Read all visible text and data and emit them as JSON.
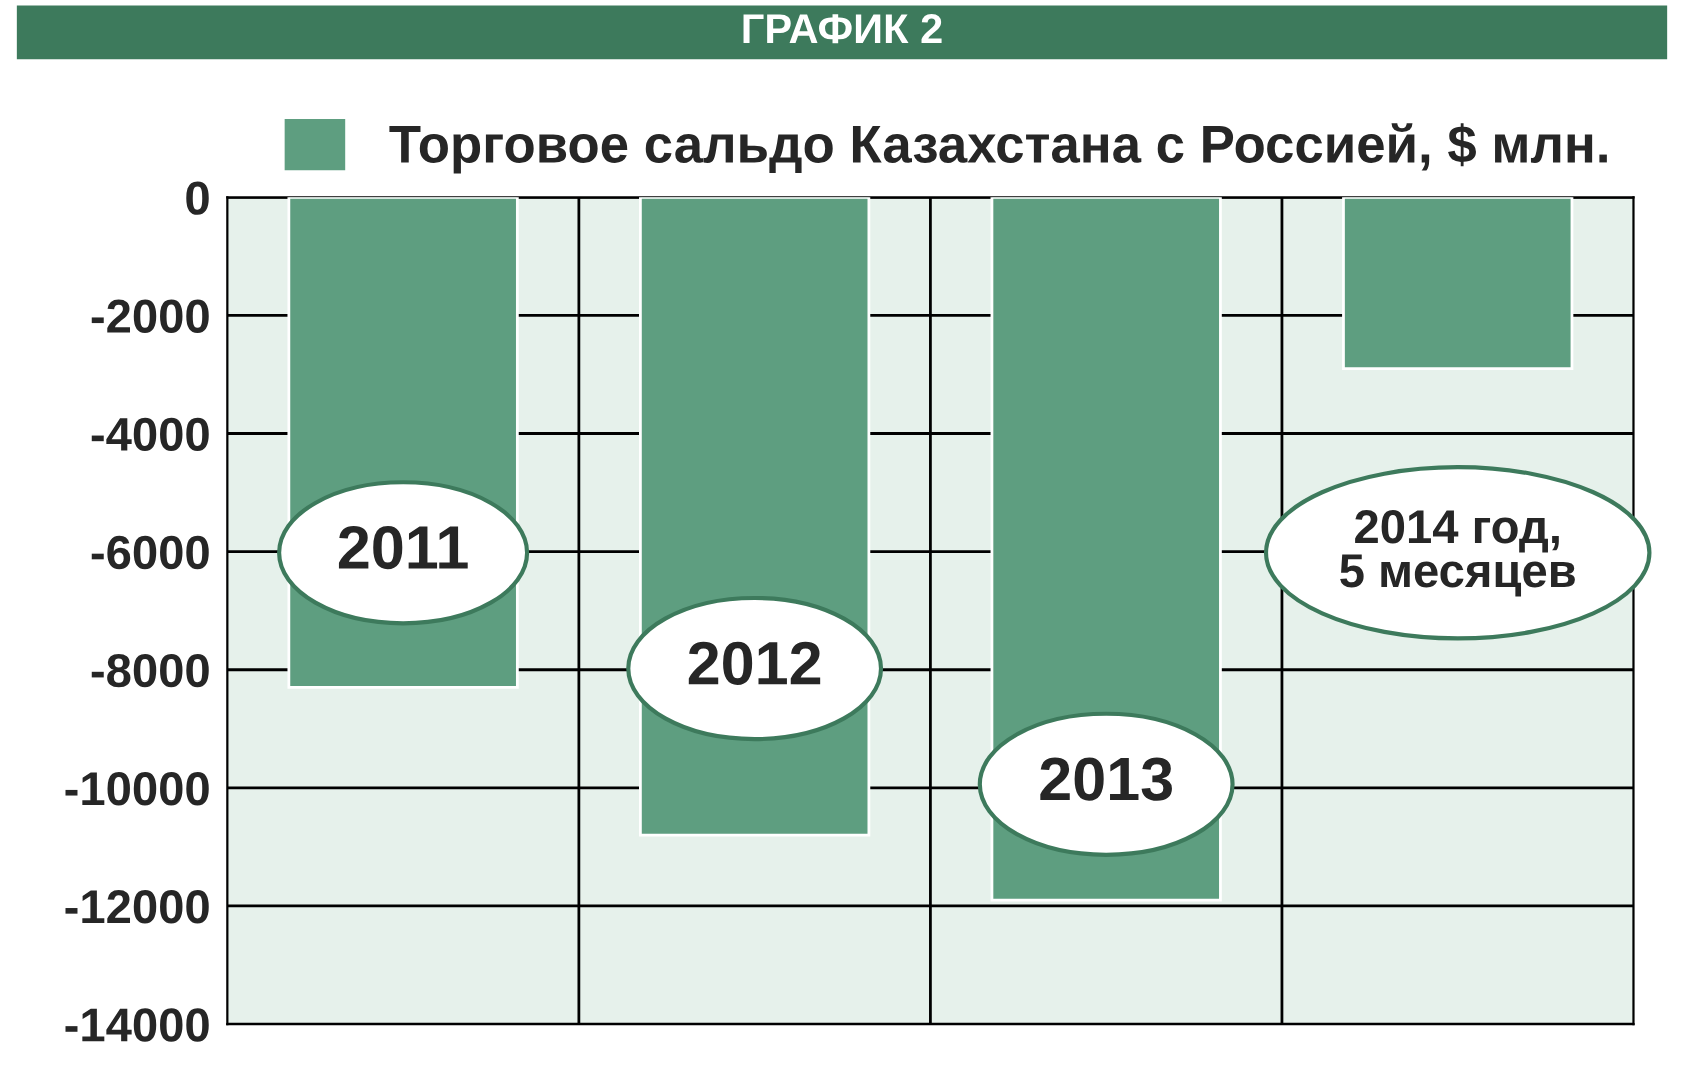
{
  "chart_data": {
    "type": "bar",
    "title": "ГРАФИК 2",
    "categories": [
      "2011",
      "2012",
      "2013",
      "2014 год,\n5 месяцев"
    ],
    "series": [
      {
        "name": "Торговое сальдо Казахстана с Россией, $ млн.",
        "color": "#5e9e80",
        "values": [
          -8300,
          -10800,
          -11900,
          -2900
        ]
      }
    ],
    "ylim": [
      -14000,
      0
    ],
    "yticks": [
      0,
      -2000,
      -4000,
      -6000,
      -8000,
      -10000,
      -12000,
      -14000
    ],
    "grid": true,
    "legend": "top left"
  }
}
